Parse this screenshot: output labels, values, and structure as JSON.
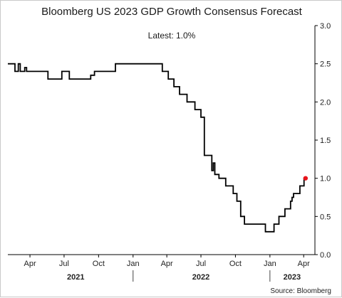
{
  "chart_data": {
    "type": "line",
    "title": "Bloomberg US 2023 GDP Growth Consensus Forecast",
    "subtitle": "Latest:  1.0%",
    "source": "Source: Bloomberg",
    "ylim": [
      0,
      3
    ],
    "yticks": [
      0.0,
      0.5,
      1.0,
      1.5,
      2.0,
      2.5,
      3.0
    ],
    "ytick_labels": [
      "0.0",
      "0.5",
      "1.0",
      "1.5",
      "2.0",
      "2.5",
      "3.0"
    ],
    "y_axis_side": "right",
    "xlim": [
      "2021-02-01",
      "2023-05-01"
    ],
    "xticks": [
      {
        "date": "2021-04-01",
        "label": "Apr"
      },
      {
        "date": "2021-07-01",
        "label": "Jul"
      },
      {
        "date": "2021-10-01",
        "label": "Oct"
      },
      {
        "date": "2022-01-01",
        "label": "Jan"
      },
      {
        "date": "2022-04-01",
        "label": "Apr"
      },
      {
        "date": "2022-07-01",
        "label": "Jul"
      },
      {
        "date": "2022-10-01",
        "label": "Oct"
      },
      {
        "date": "2023-01-01",
        "label": "Jan"
      },
      {
        "date": "2023-04-01",
        "label": "Apr"
      }
    ],
    "year_labels": [
      {
        "label": "2021",
        "date": "2021-08-01"
      },
      {
        "label": "2022",
        "date": "2022-07-01"
      },
      {
        "label": "2023",
        "date": "2023-03-01"
      }
    ],
    "year_separators": [
      "2022-01-01",
      "2023-01-01"
    ],
    "grid": false,
    "line_color": "#000000",
    "latest_marker_color": "#e8141c",
    "series": [
      {
        "points": [
          [
            "2021-02-01",
            2.5
          ],
          [
            "2021-02-20",
            2.5
          ],
          [
            "2021-02-20",
            2.4
          ],
          [
            "2021-03-01",
            2.4
          ],
          [
            "2021-03-01",
            2.5
          ],
          [
            "2021-03-06",
            2.5
          ],
          [
            "2021-03-06",
            2.4
          ],
          [
            "2021-03-18",
            2.4
          ],
          [
            "2021-03-18",
            2.45
          ],
          [
            "2021-03-23",
            2.45
          ],
          [
            "2021-03-23",
            2.4
          ],
          [
            "2021-05-19",
            2.4
          ],
          [
            "2021-05-19",
            2.3
          ],
          [
            "2021-06-25",
            2.3
          ],
          [
            "2021-06-25",
            2.4
          ],
          [
            "2021-07-15",
            2.4
          ],
          [
            "2021-07-15",
            2.3
          ],
          [
            "2021-09-10",
            2.3
          ],
          [
            "2021-09-10",
            2.35
          ],
          [
            "2021-09-20",
            2.35
          ],
          [
            "2021-09-20",
            2.4
          ],
          [
            "2021-11-15",
            2.4
          ],
          [
            "2021-11-15",
            2.5
          ],
          [
            "2022-03-20",
            2.5
          ],
          [
            "2022-03-20",
            2.4
          ],
          [
            "2022-04-05",
            2.4
          ],
          [
            "2022-04-05",
            2.3
          ],
          [
            "2022-04-20",
            2.3
          ],
          [
            "2022-04-20",
            2.2
          ],
          [
            "2022-05-05",
            2.2
          ],
          [
            "2022-05-05",
            2.1
          ],
          [
            "2022-05-25",
            2.1
          ],
          [
            "2022-05-25",
            2.0
          ],
          [
            "2022-06-15",
            2.0
          ],
          [
            "2022-06-15",
            1.9
          ],
          [
            "2022-07-01",
            1.9
          ],
          [
            "2022-07-01",
            1.8
          ],
          [
            "2022-07-10",
            1.8
          ],
          [
            "2022-07-10",
            1.3
          ],
          [
            "2022-07-30",
            1.3
          ],
          [
            "2022-07-30",
            1.1
          ],
          [
            "2022-08-03",
            1.1
          ],
          [
            "2022-08-03",
            1.2
          ],
          [
            "2022-08-07",
            1.2
          ],
          [
            "2022-08-07",
            1.05
          ],
          [
            "2022-08-18",
            1.05
          ],
          [
            "2022-08-18",
            1.0
          ],
          [
            "2022-09-05",
            1.0
          ],
          [
            "2022-09-05",
            0.9
          ],
          [
            "2022-09-25",
            0.9
          ],
          [
            "2022-09-25",
            0.8
          ],
          [
            "2022-10-05",
            0.8
          ],
          [
            "2022-10-05",
            0.7
          ],
          [
            "2022-10-15",
            0.7
          ],
          [
            "2022-10-15",
            0.5
          ],
          [
            "2022-10-25",
            0.5
          ],
          [
            "2022-10-25",
            0.4
          ],
          [
            "2022-12-20",
            0.4
          ],
          [
            "2022-12-20",
            0.3
          ],
          [
            "2023-01-12",
            0.3
          ],
          [
            "2023-01-12",
            0.4
          ],
          [
            "2023-01-25",
            0.4
          ],
          [
            "2023-01-25",
            0.5
          ],
          [
            "2023-02-10",
            0.5
          ],
          [
            "2023-02-10",
            0.6
          ],
          [
            "2023-02-25",
            0.6
          ],
          [
            "2023-02-25",
            0.7
          ],
          [
            "2023-03-01",
            0.7
          ],
          [
            "2023-03-01",
            0.75
          ],
          [
            "2023-03-05",
            0.75
          ],
          [
            "2023-03-05",
            0.8
          ],
          [
            "2023-03-22",
            0.8
          ],
          [
            "2023-03-22",
            0.9
          ],
          [
            "2023-04-02",
            0.9
          ],
          [
            "2023-04-02",
            1.0
          ],
          [
            "2023-04-06",
            1.0
          ]
        ]
      }
    ],
    "latest_point": [
      "2023-04-06",
      1.0
    ]
  }
}
